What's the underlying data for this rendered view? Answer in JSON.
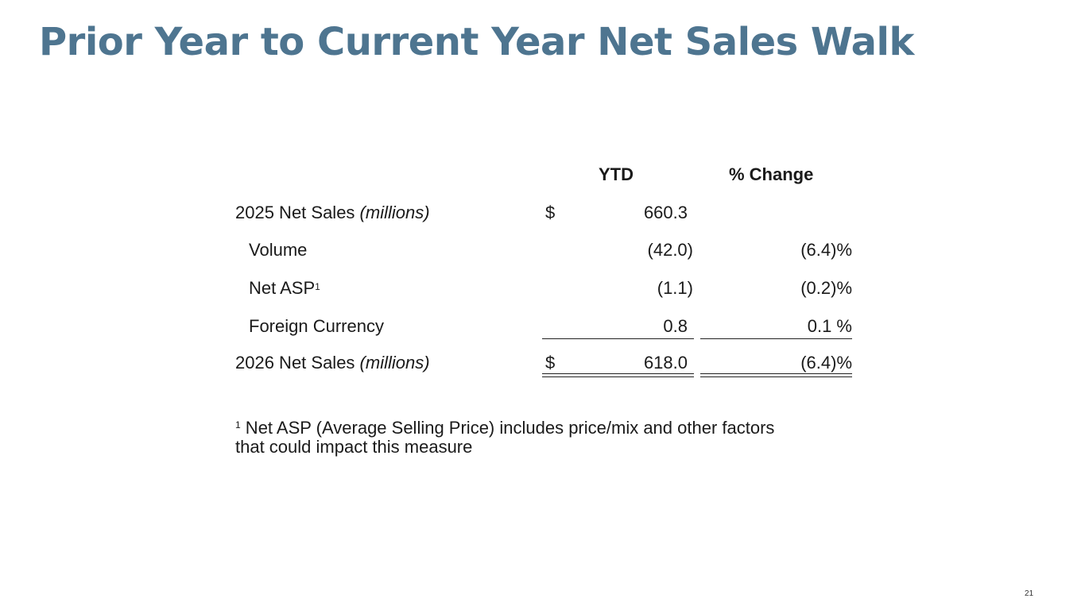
{
  "slide": {
    "title": "Prior Year to Current Year Net Sales Walk",
    "title_color": "#4e7590",
    "page_number": "21"
  },
  "table": {
    "header": {
      "ytd": "YTD",
      "change": "% Change"
    },
    "rows": [
      {
        "label": "2025 Net Sales ",
        "label_italic": "(millions)",
        "currency": "$",
        "ytd": "660.3",
        "change": ""
      },
      {
        "label": "Volume",
        "ytd": "(42.0)",
        "change": "(6.4)%"
      },
      {
        "label": "Net ASP",
        "label_sup": "1",
        "ytd": "(1.1)",
        "change": "(0.2)%"
      },
      {
        "label": "Foreign Currency",
        "ytd": "0.8",
        "change": "0.1 %"
      },
      {
        "label": "2026 Net Sales ",
        "label_italic": "(millions)",
        "currency": "$",
        "ytd": "618.0",
        "change": "(6.4)%"
      }
    ]
  },
  "footnote": {
    "marker": "1",
    "text": " Net ASP (Average Selling Price) includes price/mix and other factors that could impact this measure"
  }
}
